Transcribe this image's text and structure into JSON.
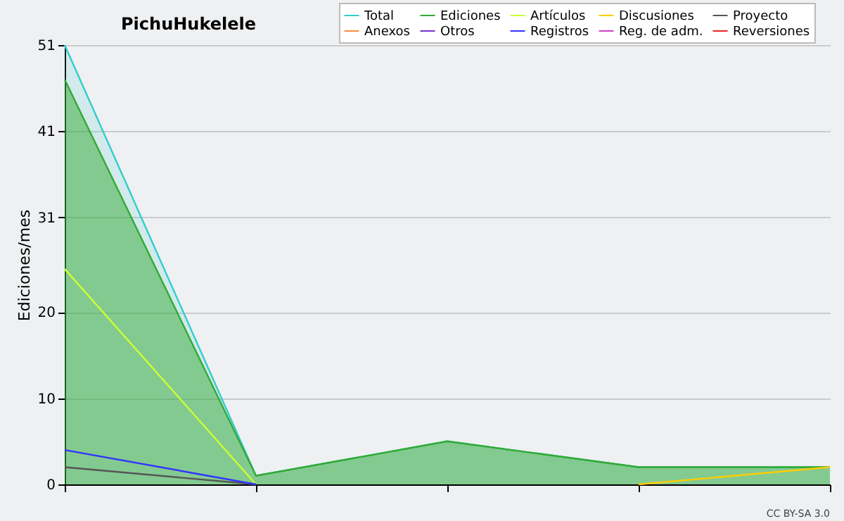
{
  "chart_data": {
    "type": "line",
    "title": "PichuHukelele",
    "ylabel": "Ediciones/mes",
    "annotations": [
      "CC BY-SA 3.0"
    ],
    "categories": [
      null,
      null,
      null,
      null,
      null
    ],
    "series": [
      {
        "name": "Total",
        "type": "area",
        "color": "#33cccc",
        "values": [
          51,
          1,
          5,
          2,
          2
        ]
      },
      {
        "name": "Ediciones",
        "type": "area",
        "color": "#33aa33",
        "values": [
          47,
          1,
          5,
          2,
          2
        ]
      },
      {
        "name": "Artículos",
        "color": "#ccff33",
        "values": [
          25,
          0,
          null,
          null,
          null
        ]
      },
      {
        "name": "Discusiones",
        "color": "#ffcc00",
        "values": [
          null,
          null,
          null,
          0,
          2
        ]
      },
      {
        "name": "Proyecto",
        "color": "#555555",
        "values": [
          2,
          0,
          null,
          null,
          null
        ]
      },
      {
        "name": "Anexos",
        "color": "#ff8844",
        "values": [
          null,
          null,
          null,
          null,
          null
        ]
      },
      {
        "name": "Otros",
        "color": "#7733cc",
        "values": [
          null,
          null,
          null,
          null,
          null
        ]
      },
      {
        "name": "Registros",
        "color": "#3333ff",
        "values": [
          4,
          0,
          null,
          null,
          null
        ]
      },
      {
        "name": "Reg. de adm.",
        "color": "#cc44cc",
        "values": [
          null,
          null,
          null,
          null,
          null
        ]
      },
      {
        "name": "Reversiones",
        "color": "#ee2222",
        "values": [
          null,
          null,
          null,
          null,
          null
        ]
      }
    ],
    "ylim": [
      0,
      51
    ],
    "yticks": [
      0,
      10,
      20,
      31,
      41,
      51
    ],
    "grid": "y",
    "legend": "top right",
    "tick_labels": "y"
  }
}
